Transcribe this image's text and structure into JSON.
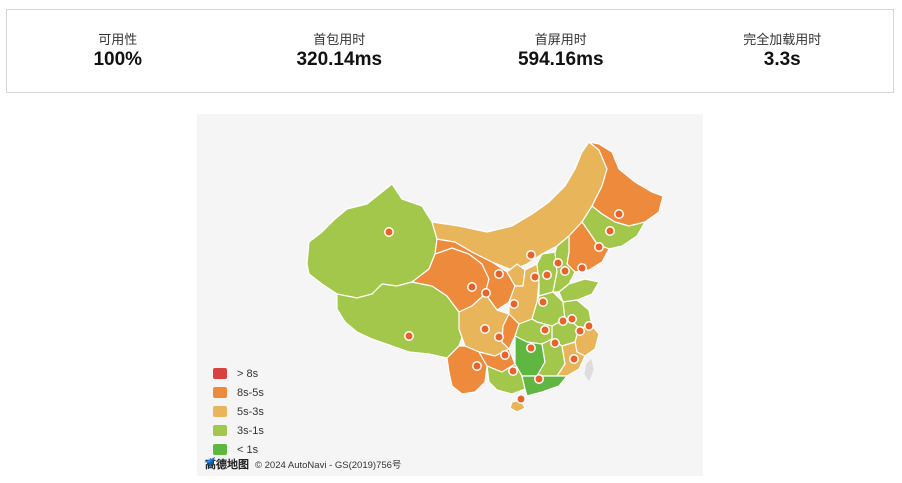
{
  "stats": [
    {
      "label": "可用性",
      "value": "100%"
    },
    {
      "label": "首包用时",
      "value": "320.14ms"
    },
    {
      "label": "首屏用时",
      "value": "594.16ms"
    },
    {
      "label": "完全加载用时",
      "value": "3.3s"
    }
  ],
  "map": {
    "legend": [
      {
        "label": "> 8s",
        "color": "#d94040"
      },
      {
        "label": "8s-5s",
        "color": "#ee8a3c"
      },
      {
        "label": "5s-3s",
        "color": "#e9b55a"
      },
      {
        "label": "3s-1s",
        "color": "#a3c74a"
      },
      {
        "label": "< 1s",
        "color": "#5fb741"
      }
    ],
    "attribution": {
      "logo_text": "高德地图",
      "copyright": "© 2024 AutoNavi - GS(2019)756号"
    },
    "colors": {
      "marker_fill": "#e8622a",
      "marker_stroke": "#ffffff",
      "border": "#ffffff",
      "sea": "#f5f5f5",
      "island": "#dddddd"
    },
    "icons": [
      "amap-logo-icon",
      "city-marker-icon"
    ]
  }
}
